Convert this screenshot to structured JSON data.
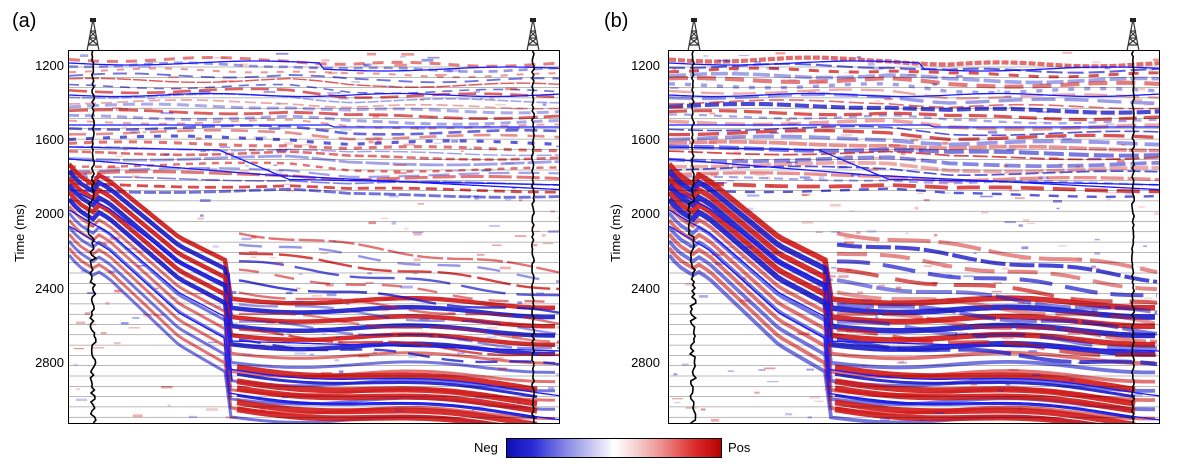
{
  "figure": {
    "panels": [
      {
        "id": "a",
        "label": "(a)",
        "variant": "a"
      },
      {
        "id": "b",
        "label": "(b)",
        "variant": "b"
      }
    ],
    "y_axis": {
      "label": "Time (ms)",
      "ticks": [
        "1200",
        "1600",
        "2000",
        "2400",
        "2800"
      ],
      "tick_values": [
        1200,
        1600,
        2000,
        2400,
        2800
      ],
      "range": [
        1110,
        3120
      ]
    },
    "colorbar": {
      "neg_label": "Neg",
      "pos_label": "Pos",
      "neg_color": "#1010b8",
      "pos_color": "#b80000"
    },
    "colors": {
      "horizon": "#1a1aff",
      "well_log": "#000000",
      "positive": "#d01818",
      "negative": "#1a1acc"
    }
  }
}
